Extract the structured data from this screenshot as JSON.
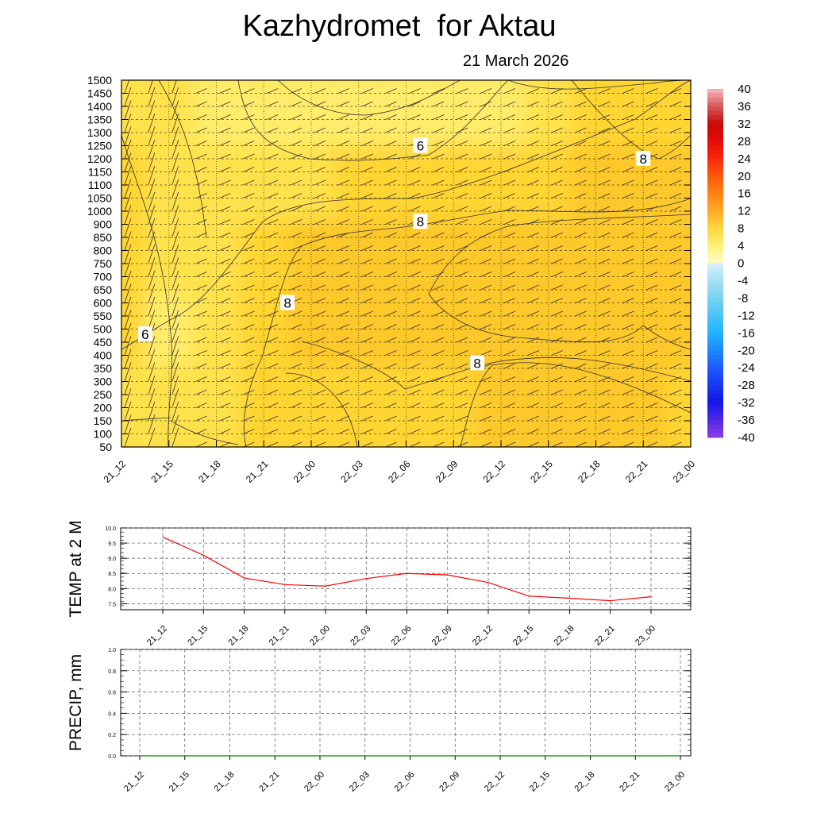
{
  "title": "Kazhydromet  for Aktau",
  "subtitle": "21 March 2026",
  "chart_data": [
    {
      "type": "heatmap",
      "name": "cross-section temperature",
      "x_categories": [
        "21_12",
        "21_15",
        "21_18",
        "21_21",
        "22_00",
        "22_03",
        "22_06",
        "22_09",
        "22_12",
        "22_15",
        "22_18",
        "22_21",
        "23_00"
      ],
      "y_ticks": [
        1500,
        1450,
        1400,
        1350,
        1300,
        1250,
        1200,
        1150,
        1100,
        1050,
        1000,
        900,
        850,
        800,
        750,
        700,
        650,
        600,
        550,
        500,
        450,
        400,
        350,
        300,
        250,
        200,
        150,
        100,
        50
      ],
      "colorbar": {
        "labels": [
          "40",
          "36",
          "32",
          "28",
          "24",
          "20",
          "16",
          "12",
          "8",
          "4",
          "0",
          "-4",
          "-8",
          "-12",
          "-16",
          "-20",
          "-24",
          "-28",
          "-32",
          "-36",
          "-40"
        ],
        "range": [
          -40,
          40
        ]
      },
      "contour_labels": [
        {
          "text": "6",
          "x_index": 6.3,
          "y_value": 1250
        },
        {
          "text": "8",
          "x_index": 11.0,
          "y_value": 1200
        },
        {
          "text": "8",
          "x_index": 6.3,
          "y_value": 920
        },
        {
          "text": "8",
          "x_index": 3.5,
          "y_value": 600
        },
        {
          "text": "6",
          "x_index": 0.5,
          "y_value": 480
        },
        {
          "text": "8",
          "x_index": 7.5,
          "y_value": 370
        }
      ],
      "fill_colors": {
        "warm": "#fdc82a",
        "mid": "#ffd533",
        "cool": "#ffe24c",
        "palest": "#ffec6b"
      },
      "warm_field": [
        [
          0.35,
          0.25,
          0.1,
          0.05,
          0.0,
          0.0,
          0.0,
          0.05,
          0.15,
          0.35,
          0.5,
          0.6,
          0.6
        ],
        [
          0.6,
          0.3,
          0.25,
          0.35,
          0.4,
          0.45,
          0.5,
          0.5,
          0.55,
          0.7,
          0.8,
          0.85,
          0.85
        ],
        [
          0.5,
          0.2,
          0.3,
          0.65,
          0.85,
          0.85,
          0.85,
          0.9,
          1.0,
          1.0,
          1.0,
          1.0,
          1.0
        ],
        [
          0.45,
          0.15,
          0.3,
          0.7,
          0.9,
          0.95,
          0.95,
          1.0,
          1.0,
          1.0,
          1.0,
          0.95,
          0.9
        ],
        [
          0.3,
          0.25,
          0.4,
          0.6,
          0.6,
          0.7,
          0.7,
          0.75,
          0.85,
          0.85,
          0.85,
          0.8,
          0.75
        ]
      ]
    },
    {
      "type": "line",
      "name": "temperature at 2 m",
      "ylabel": "TEMP at 2 M",
      "ylim": [
        7.3,
        10.0
      ],
      "y_ticks": [
        "10.0",
        "9.5",
        "9.0",
        "8.5",
        "8.0",
        "7.5"
      ],
      "categories": [
        "21_12",
        "21_15",
        "21_18",
        "21_21",
        "22_00",
        "22_03",
        "22_06",
        "22_09",
        "22_12",
        "22_15",
        "22_18",
        "22_21",
        "23_00"
      ],
      "values": [
        9.7,
        9.1,
        8.35,
        8.13,
        8.08,
        8.33,
        8.5,
        8.45,
        8.2,
        7.75,
        7.68,
        7.6,
        7.73
      ],
      "color": "#ff0000"
    },
    {
      "type": "line",
      "name": "precipitation",
      "ylabel": "PRECIP, mm",
      "ylim": [
        0.0,
        1.0
      ],
      "y_ticks": [
        "1.0",
        "0.8",
        "0.6",
        "0.4",
        "0.2",
        "0.0"
      ],
      "categories": [
        "21_12",
        "21_15",
        "21_18",
        "21_21",
        "22_00",
        "22_03",
        "22_06",
        "22_09",
        "22_12",
        "22_15",
        "22_18",
        "22_21",
        "23_00"
      ],
      "values": [
        0,
        0,
        0,
        0,
        0,
        0,
        0,
        0,
        0,
        0,
        0,
        0,
        0
      ],
      "color": "#008800"
    }
  ]
}
